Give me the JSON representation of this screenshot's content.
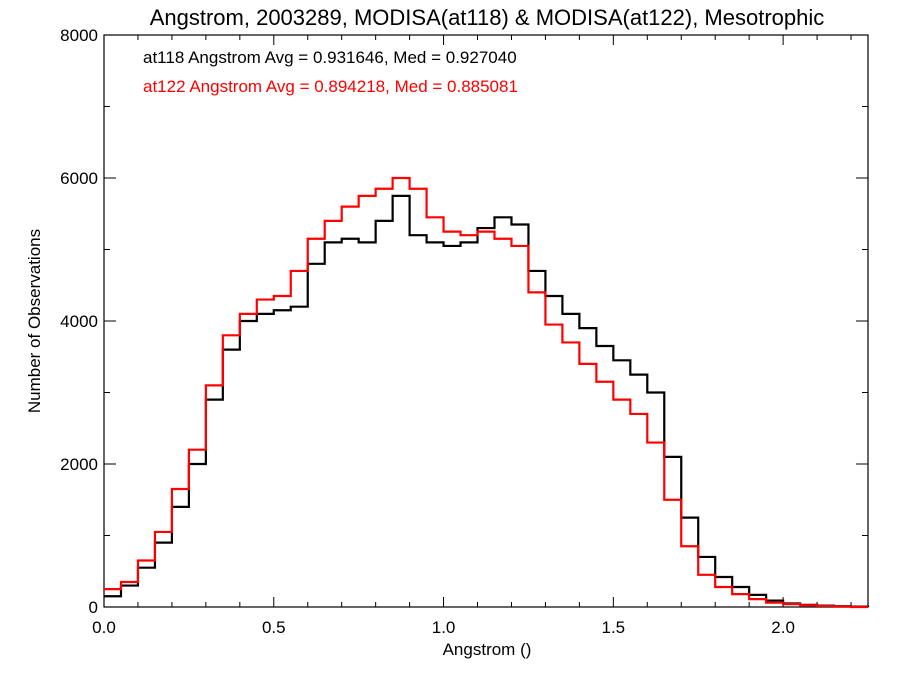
{
  "chart_data": {
    "type": "line",
    "title": "Angstrom, 2003289, MODISA(at118) & MODISA(at122), Mesotrophic",
    "xlabel": "Angstrom ()",
    "ylabel": "Number of Observations",
    "xlim": [
      0.0,
      2.25
    ],
    "ylim": [
      0,
      8000
    ],
    "xticks": [
      "0.0",
      "0.5",
      "1.0",
      "1.5",
      "2.0"
    ],
    "yticks": [
      "0",
      "2000",
      "4000",
      "6000",
      "8000"
    ],
    "grid": false,
    "legend_position": "top-left",
    "step": true,
    "annotations": [
      {
        "text": "at118 Angstrom Avg = 0.931646, Med = 0.927040",
        "color": "#000000"
      },
      {
        "text": "at122 Angstrom Avg = 0.894218, Med = 0.885081",
        "color": "#ff0000"
      }
    ],
    "series": [
      {
        "color": "#000000",
        "x": [
          0.0,
          0.05,
          0.1,
          0.15,
          0.2,
          0.25,
          0.3,
          0.35,
          0.4,
          0.45,
          0.5,
          0.55,
          0.6,
          0.65,
          0.7,
          0.75,
          0.8,
          0.85,
          0.9,
          0.95,
          1.0,
          1.05,
          1.1,
          1.15,
          1.2,
          1.25,
          1.3,
          1.35,
          1.4,
          1.45,
          1.5,
          1.55,
          1.6,
          1.65,
          1.7,
          1.75,
          1.8,
          1.85,
          1.9,
          1.95,
          2.0,
          2.05,
          2.1,
          2.15,
          2.2,
          2.25
        ],
        "y": [
          150,
          300,
          550,
          900,
          1400,
          2000,
          2900,
          3600,
          4000,
          4100,
          4150,
          4200,
          4800,
          5100,
          5150,
          5100,
          5400,
          5750,
          5200,
          5100,
          5050,
          5100,
          5300,
          5450,
          5350,
          4700,
          4350,
          4100,
          3900,
          3650,
          3450,
          3250,
          3000,
          2100,
          1250,
          700,
          420,
          280,
          170,
          90,
          50,
          30,
          20,
          10,
          5,
          0
        ]
      },
      {
        "color": "#ff0000",
        "x": [
          0.0,
          0.05,
          0.1,
          0.15,
          0.2,
          0.25,
          0.3,
          0.35,
          0.4,
          0.45,
          0.5,
          0.55,
          0.6,
          0.65,
          0.7,
          0.75,
          0.8,
          0.85,
          0.9,
          0.95,
          1.0,
          1.05,
          1.1,
          1.15,
          1.2,
          1.25,
          1.3,
          1.35,
          1.4,
          1.45,
          1.5,
          1.55,
          1.6,
          1.65,
          1.7,
          1.75,
          1.8,
          1.85,
          1.9,
          1.95,
          2.0,
          2.05,
          2.1,
          2.15,
          2.2,
          2.25
        ],
        "y": [
          250,
          350,
          650,
          1050,
          1650,
          2200,
          3100,
          3800,
          4100,
          4300,
          4350,
          4700,
          5150,
          5400,
          5600,
          5750,
          5850,
          6000,
          5850,
          5450,
          5250,
          5200,
          5250,
          5150,
          5050,
          4400,
          3950,
          3700,
          3400,
          3150,
          2900,
          2700,
          2300,
          1500,
          850,
          450,
          280,
          180,
          110,
          60,
          40,
          25,
          15,
          5,
          0,
          0
        ]
      }
    ]
  }
}
